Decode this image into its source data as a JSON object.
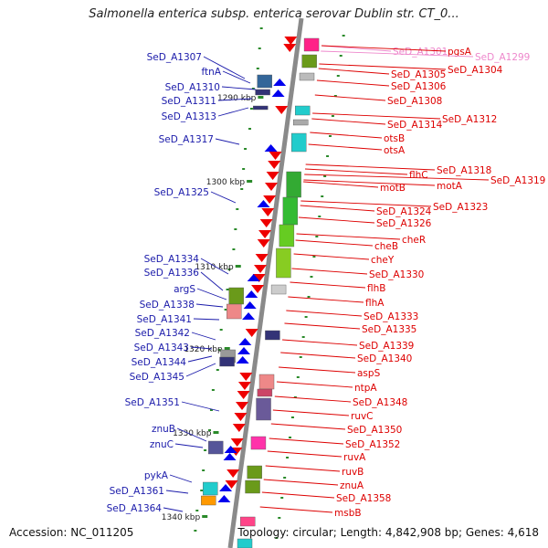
{
  "title": "Salmonella enterica subsp. enterica serovar Dublin str. CT_0...",
  "footer": {
    "accession": "Accession: NC_011205",
    "topology": "Topology: circular; Length: 4,842,908 bp; Genes: 4,618"
  },
  "colors": {
    "left_label": "#1a1aaa",
    "right_label": "#dd0000",
    "faded_label": "#ee88cc",
    "strand_arrow_left": "#0000ee",
    "strand_arrow_right": "#ee0000"
  },
  "kbp_ticks": [
    "1290 kbp",
    "1300 kbp",
    "1310 kbp",
    "1320 kbp",
    "1330 kbp",
    "1340 kbp"
  ],
  "left_labels": [
    "SeD_A1307",
    "ftnA",
    "SeD_A1310",
    "SeD_A1311",
    "SeD_A1313",
    "SeD_A1317",
    "SeD_A1325",
    "SeD_A1334",
    "SeD_A1336",
    "argS",
    "SeD_A1338",
    "SeD_A1341",
    "SeD_A1342",
    "SeD_A1343",
    "SeD_A1344",
    "SeD_A1345",
    "SeD_A1351",
    "znuB",
    "znuC",
    "pykA",
    "SeD_A1361",
    "SeD_A1364"
  ],
  "right_labels": [
    "SeD_A1301",
    "pgsA",
    "SeD_A1299",
    "SeD_A1304",
    "SeD_A1305",
    "SeD_A1306",
    "SeD_A1308",
    "SeD_A1312",
    "SeD_A1314",
    "otsB",
    "otsA",
    "SeD_A1318",
    "flhC",
    "SeD_A1319",
    "motB",
    "motA",
    "SeD_A1323",
    "SeD_A1324",
    "SeD_A1326",
    "cheR",
    "cheB",
    "cheY",
    "SeD_A1330",
    "flhB",
    "flhA",
    "SeD_A1333",
    "SeD_A1335",
    "SeD_A1339",
    "SeD_A1340",
    "aspS",
    "ntpA",
    "SeD_A1348",
    "ruvC",
    "SeD_A1350",
    "SeD_A1352",
    "ruvA",
    "ruvB",
    "znuA",
    "SeD_A1358",
    "msbB"
  ]
}
